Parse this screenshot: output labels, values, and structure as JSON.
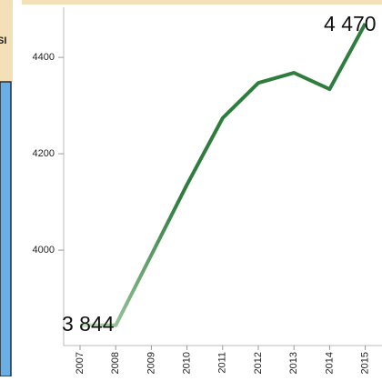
{
  "left_panel": {
    "label": "SI"
  },
  "chart_data": {
    "type": "line",
    "categories": [
      "2007",
      "2008",
      "2009",
      "2010",
      "2011",
      "2012",
      "2013",
      "2014",
      "2015"
    ],
    "values": [
      3844,
      3844,
      3990,
      4136,
      4274,
      4347,
      4368,
      4334,
      4470
    ],
    "value_labels": [
      "3 844",
      null,
      null,
      null,
      null,
      null,
      null,
      null,
      "4 470"
    ],
    "color": "#2e7d3e",
    "color_start": "#cfe6c8",
    "ylim": [
      3802,
      4504
    ],
    "yticks": [
      4000,
      4200,
      4400
    ]
  }
}
